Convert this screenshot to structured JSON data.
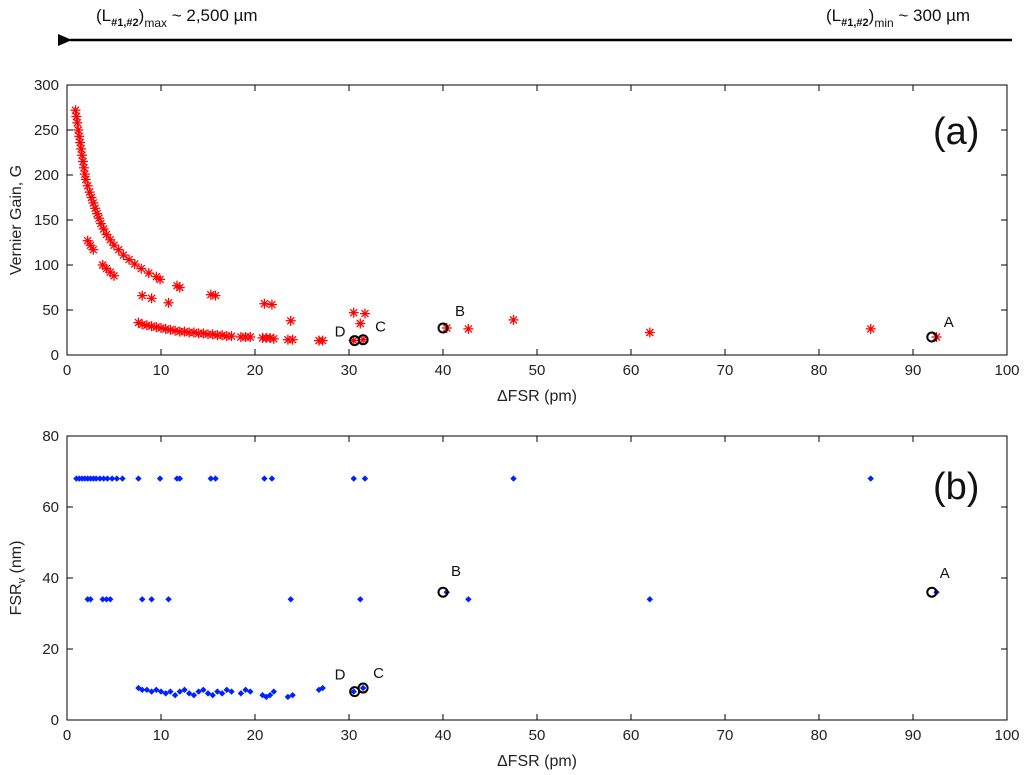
{
  "header": {
    "left": {
      "open": "(L",
      "sub": "#1,#2",
      "close": ")",
      "tail": "max",
      "value": " ~ 2,500 µm"
    },
    "right": {
      "open": "(L",
      "sub": "#1,#2",
      "close": ")",
      "tail": "min",
      "value": " ~ 300 µm"
    }
  },
  "colors": {
    "series_a": "#ff0000",
    "series_b": "#0022ff",
    "marker": "#000000",
    "axes": "#000000"
  },
  "chart_data": [
    {
      "type": "scatter",
      "panel_label": "(a)",
      "xlabel": "ΔFSR (pm)",
      "ylabel": "Vernier Gain, G",
      "xlim": [
        0,
        100
      ],
      "ylim": [
        0,
        300
      ],
      "xticks": [
        "0",
        "10",
        "20",
        "30",
        "40",
        "50",
        "60",
        "70",
        "80",
        "90",
        "100"
      ],
      "yticks": [
        "0",
        "50",
        "100",
        "150",
        "200",
        "250",
        "300"
      ],
      "marker_style": "asterisk",
      "points": [
        [
          0.9,
          272
        ],
        [
          1.0,
          265
        ],
        [
          1.1,
          258
        ],
        [
          1.2,
          250
        ],
        [
          1.3,
          243
        ],
        [
          1.4,
          236
        ],
        [
          1.5,
          229
        ],
        [
          1.6,
          222
        ],
        [
          1.7,
          215
        ],
        [
          1.8,
          208
        ],
        [
          1.9,
          201
        ],
        [
          2.0,
          195
        ],
        [
          2.2,
          188
        ],
        [
          2.4,
          181
        ],
        [
          2.6,
          175
        ],
        [
          2.8,
          169
        ],
        [
          3.0,
          163
        ],
        [
          3.2,
          157
        ],
        [
          3.4,
          152
        ],
        [
          3.6,
          146
        ],
        [
          3.9,
          140
        ],
        [
          4.2,
          134
        ],
        [
          4.6,
          128
        ],
        [
          5.0,
          122
        ],
        [
          5.5,
          117
        ],
        [
          6.0,
          111
        ],
        [
          6.6,
          106
        ],
        [
          7.2,
          101
        ],
        [
          7.9,
          96
        ],
        [
          8.7,
          91
        ],
        [
          9.5,
          87
        ],
        [
          2.2,
          127
        ],
        [
          2.5,
          122
        ],
        [
          2.8,
          117
        ],
        [
          3.8,
          100
        ],
        [
          4.2,
          96
        ],
        [
          4.6,
          92
        ],
        [
          5.0,
          88
        ],
        [
          9.9,
          84
        ],
        [
          11.7,
          77
        ],
        [
          12.0,
          75
        ],
        [
          15.3,
          67
        ],
        [
          15.8,
          66
        ],
        [
          8.0,
          66
        ],
        [
          9.0,
          63
        ],
        [
          10.8,
          58
        ],
        [
          21.0,
          57
        ],
        [
          21.8,
          56
        ],
        [
          23.8,
          38
        ],
        [
          30.5,
          47
        ],
        [
          31.7,
          46
        ],
        [
          31.2,
          35
        ],
        [
          7.6,
          36
        ],
        [
          8.0,
          34
        ],
        [
          8.5,
          33
        ],
        [
          9.0,
          32
        ],
        [
          9.5,
          31
        ],
        [
          10.0,
          30
        ],
        [
          10.5,
          29
        ],
        [
          11.0,
          28
        ],
        [
          11.5,
          27
        ],
        [
          12.0,
          26
        ],
        [
          12.5,
          26
        ],
        [
          13.0,
          25
        ],
        [
          13.5,
          25
        ],
        [
          14.0,
          24
        ],
        [
          14.5,
          24
        ],
        [
          15.0,
          23
        ],
        [
          15.5,
          23
        ],
        [
          16.0,
          22
        ],
        [
          16.5,
          22
        ],
        [
          17.0,
          21
        ],
        [
          17.5,
          21
        ],
        [
          18.5,
          20
        ],
        [
          19.0,
          20
        ],
        [
          19.5,
          20
        ],
        [
          20.8,
          19
        ],
        [
          21.2,
          19
        ],
        [
          21.6,
          19
        ],
        [
          22.0,
          18
        ],
        [
          23.5,
          17
        ],
        [
          24.0,
          17
        ],
        [
          26.8,
          16
        ],
        [
          27.2,
          16
        ],
        [
          30.5,
          16
        ],
        [
          31.5,
          17
        ],
        [
          40.4,
          30
        ],
        [
          42.7,
          29
        ],
        [
          47.5,
          39
        ],
        [
          62.0,
          25
        ],
        [
          85.5,
          29
        ],
        [
          92.5,
          20
        ]
      ],
      "highlighted": [
        {
          "label": "A",
          "x": 92.0,
          "y": 20
        },
        {
          "label": "B",
          "x": 40.0,
          "y": 30
        },
        {
          "label": "C",
          "x": 31.5,
          "y": 17
        },
        {
          "label": "D",
          "x": 30.6,
          "y": 16
        }
      ]
    },
    {
      "type": "scatter",
      "panel_label": "(b)",
      "xlabel": "ΔFSR (pm)",
      "ylabel": "FSR",
      "ylabel_sub": "v",
      "ylabel_unit": " (nm)",
      "xlim": [
        0,
        100
      ],
      "ylim": [
        0,
        80
      ],
      "xticks": [
        "0",
        "10",
        "20",
        "30",
        "40",
        "50",
        "60",
        "70",
        "80",
        "90",
        "100"
      ],
      "yticks": [
        "0",
        "20",
        "40",
        "60",
        "80"
      ],
      "marker_style": "diamond",
      "points": [
        [
          1.0,
          68
        ],
        [
          1.3,
          68
        ],
        [
          1.6,
          68
        ],
        [
          1.9,
          68
        ],
        [
          2.2,
          68
        ],
        [
          2.5,
          68
        ],
        [
          2.8,
          68
        ],
        [
          3.1,
          68
        ],
        [
          3.5,
          68
        ],
        [
          3.9,
          68
        ],
        [
          4.3,
          68
        ],
        [
          4.8,
          68
        ],
        [
          5.3,
          68
        ],
        [
          5.9,
          68
        ],
        [
          7.6,
          68
        ],
        [
          9.9,
          68
        ],
        [
          11.7,
          68
        ],
        [
          12.0,
          68
        ],
        [
          15.3,
          68
        ],
        [
          15.8,
          68
        ],
        [
          21.0,
          68
        ],
        [
          21.8,
          68
        ],
        [
          30.5,
          68
        ],
        [
          31.7,
          68
        ],
        [
          47.5,
          68
        ],
        [
          85.5,
          68
        ],
        [
          2.2,
          34
        ],
        [
          2.5,
          34
        ],
        [
          3.8,
          34
        ],
        [
          4.2,
          34
        ],
        [
          4.6,
          34
        ],
        [
          8.0,
          34
        ],
        [
          9.0,
          34
        ],
        [
          10.8,
          34
        ],
        [
          23.8,
          34
        ],
        [
          31.2,
          34
        ],
        [
          42.7,
          34
        ],
        [
          62.0,
          34
        ],
        [
          40.4,
          36
        ],
        [
          92.5,
          36
        ],
        [
          7.6,
          9
        ],
        [
          8.0,
          8.5
        ],
        [
          8.5,
          8.5
        ],
        [
          9.0,
          8
        ],
        [
          9.5,
          8.5
        ],
        [
          10.0,
          8
        ],
        [
          10.5,
          7.5
        ],
        [
          11.0,
          8
        ],
        [
          11.5,
          7
        ],
        [
          12.0,
          8
        ],
        [
          12.5,
          8.5
        ],
        [
          13.0,
          7.5
        ],
        [
          13.5,
          7
        ],
        [
          14.0,
          8
        ],
        [
          14.5,
          8.5
        ],
        [
          15.0,
          7.5
        ],
        [
          15.5,
          7
        ],
        [
          16.0,
          8
        ],
        [
          16.5,
          7.5
        ],
        [
          17.0,
          8.5
        ],
        [
          17.5,
          8
        ],
        [
          18.5,
          7.5
        ],
        [
          19.0,
          8.5
        ],
        [
          19.5,
          8
        ],
        [
          20.8,
          7
        ],
        [
          21.2,
          6.5
        ],
        [
          21.6,
          7
        ],
        [
          22.0,
          8
        ],
        [
          23.5,
          6.5
        ],
        [
          24.0,
          7
        ],
        [
          26.8,
          8.5
        ],
        [
          27.2,
          9
        ],
        [
          30.5,
          8
        ],
        [
          31.5,
          9
        ]
      ],
      "highlighted": [
        {
          "label": "A",
          "x": 92.0,
          "y": 36
        },
        {
          "label": "B",
          "x": 40.0,
          "y": 36
        },
        {
          "label": "C",
          "x": 31.5,
          "y": 9
        },
        {
          "label": "D",
          "x": 30.6,
          "y": 8
        }
      ]
    }
  ]
}
